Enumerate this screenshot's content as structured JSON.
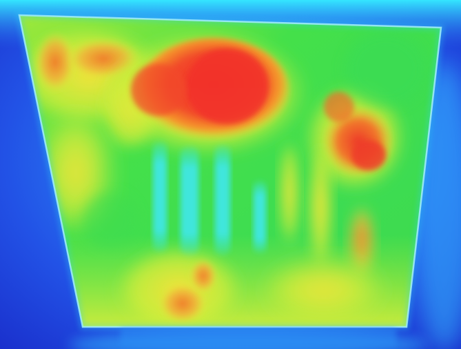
{
  "image": {
    "kind": "thermal-heatmap",
    "palette": {
      "background_cold": "#1e3cd6",
      "edge_cyan": "#2fd6f0",
      "panel_green": "#3fe04a",
      "warm_yellow": "#e8ec3a",
      "hot_orange": "#f08a2a",
      "hottest_red": "#f03a2a",
      "cool_slots_cyan": "#3fe0d8",
      "frame_line": "#c8f0ff"
    }
  }
}
